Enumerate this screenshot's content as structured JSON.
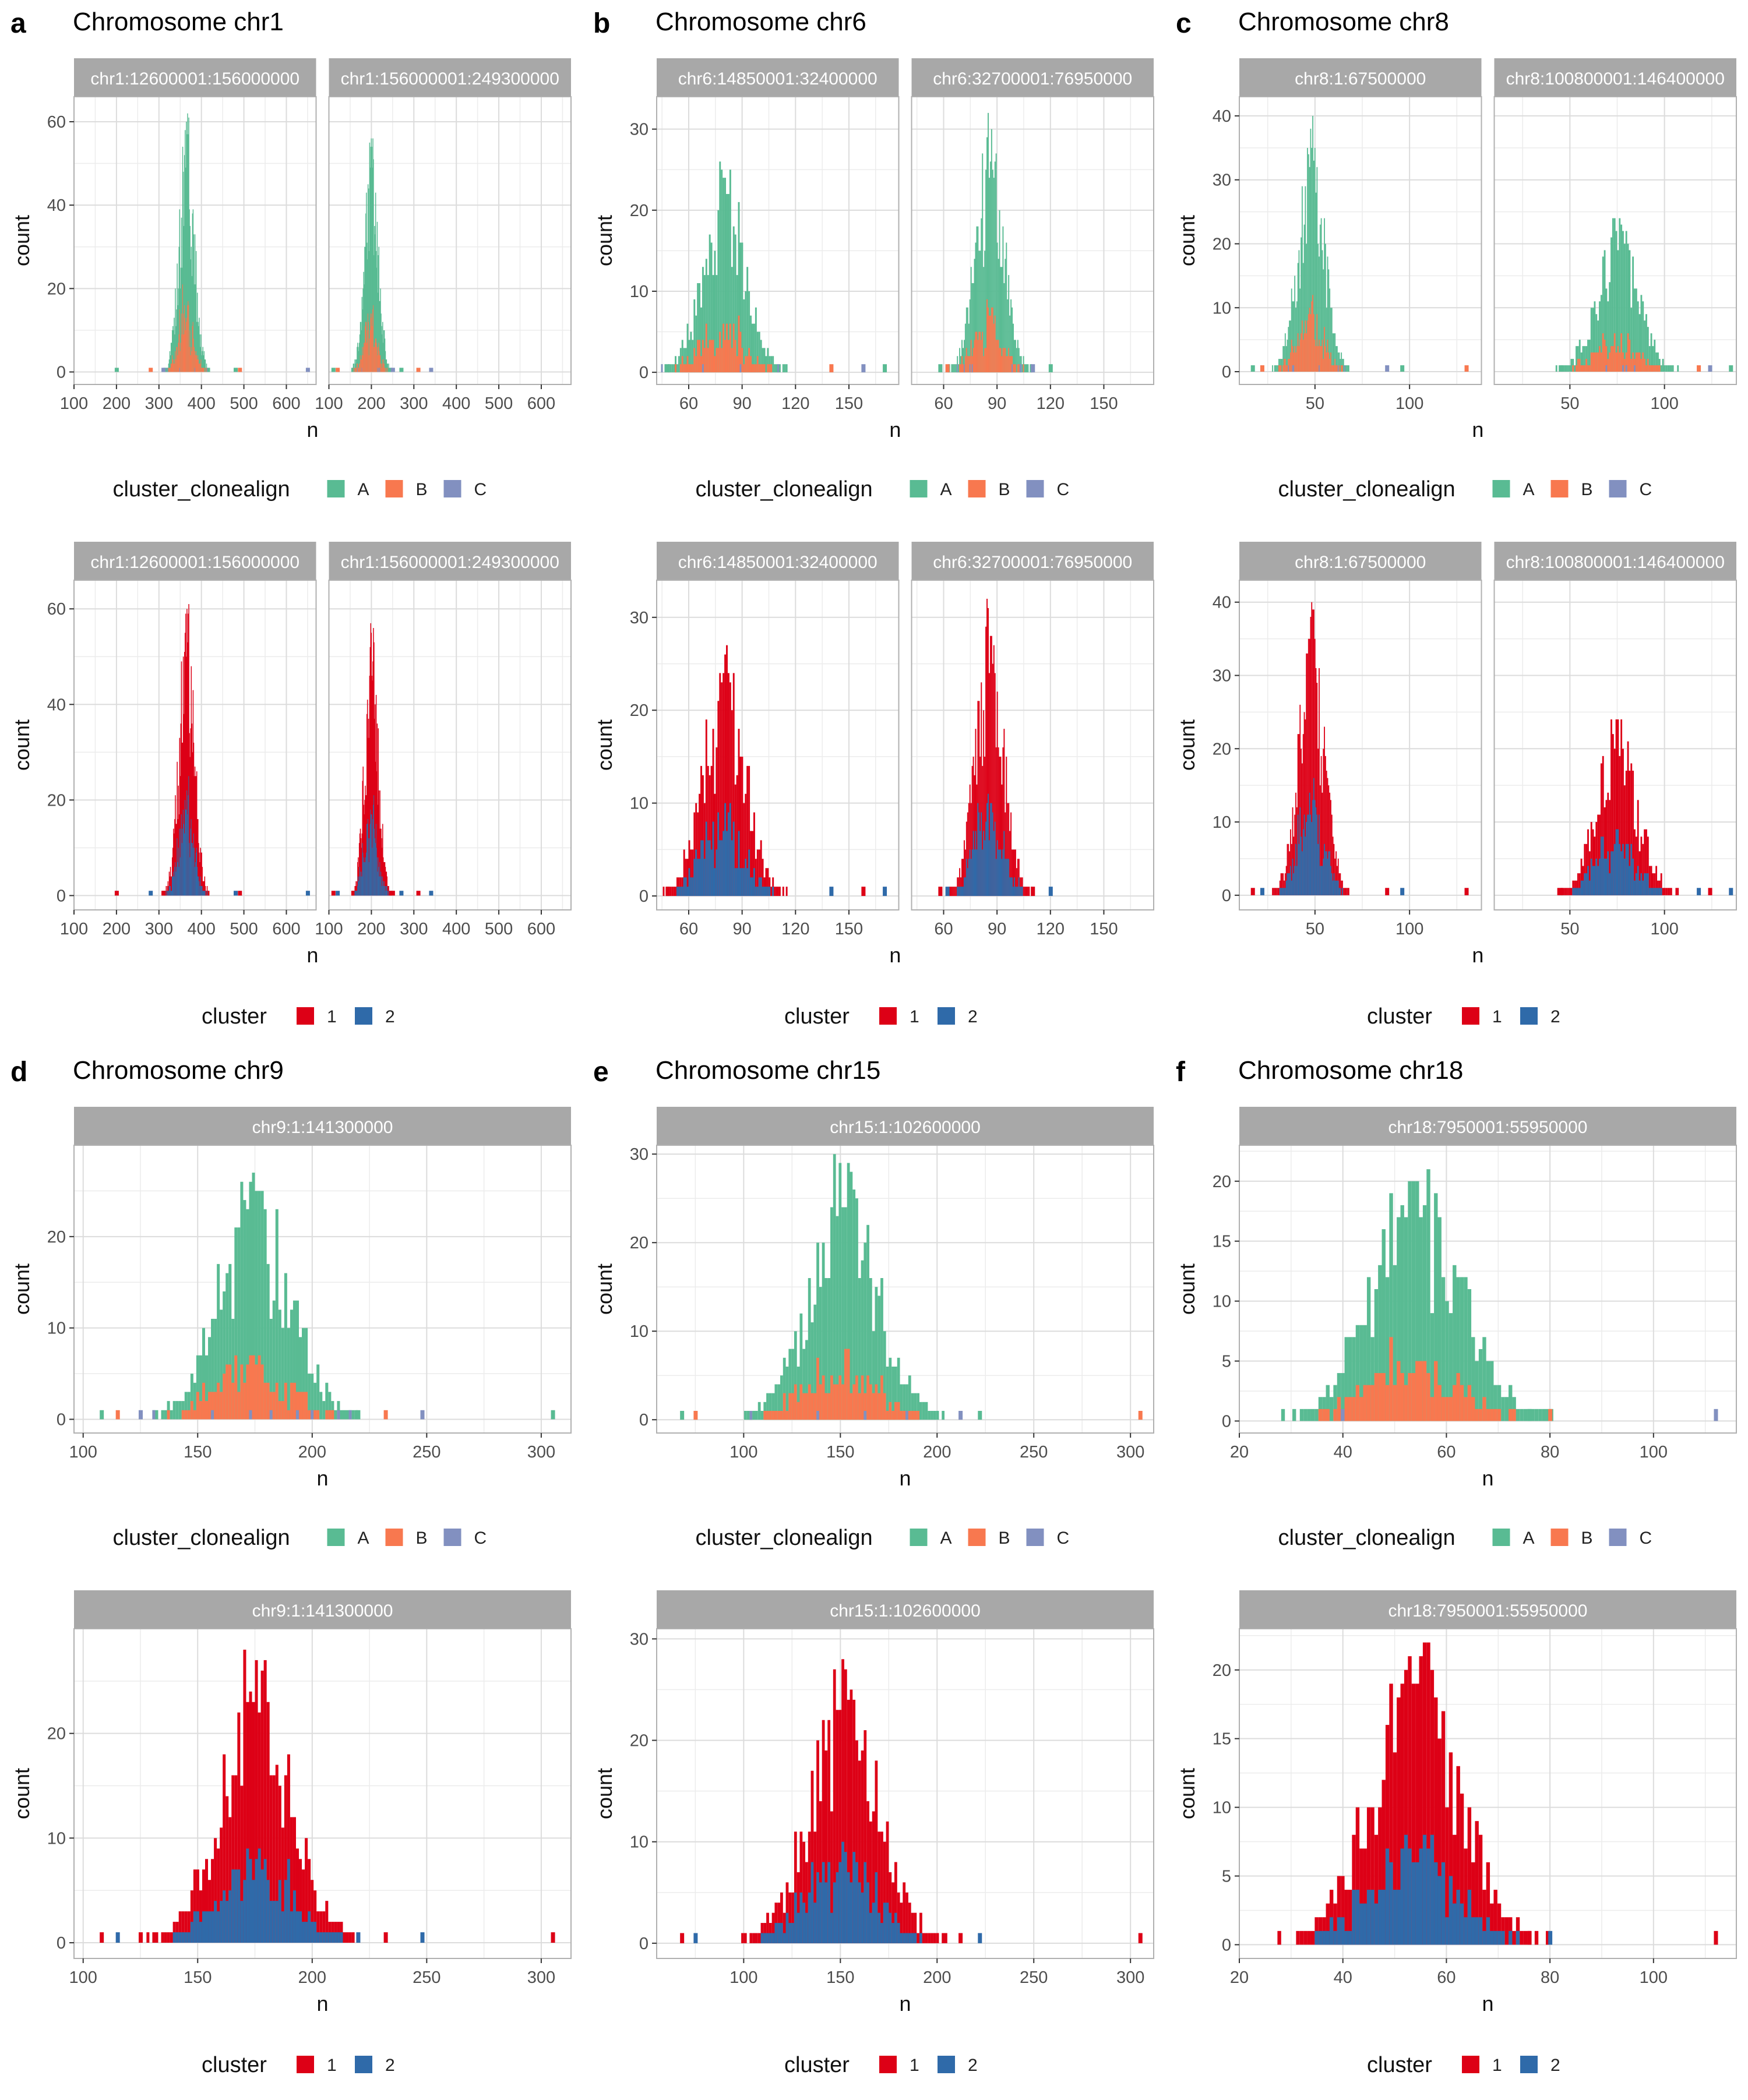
{
  "colors": {
    "A": "#59bb93",
    "B": "#f8784f",
    "C": "#8290c0",
    "c1": "#dd0016",
    "c2": "#2f6aa9",
    "strip_bg": "#a8a8a8",
    "strip_text": "#ffffff",
    "grid_major": "#dcdcdc",
    "grid_minor": "#ececec",
    "panel_border": "#b0b0b0"
  },
  "legends": {
    "clonealign": {
      "title": "cluster_clonealign",
      "keys": [
        "A",
        "B",
        "C"
      ],
      "labels": [
        "A",
        "B",
        "C"
      ]
    },
    "cluster": {
      "title": "cluster",
      "keys": [
        "c1",
        "c2"
      ],
      "labels": [
        "1",
        "2"
      ]
    }
  },
  "figures": [
    {
      "letter": "a",
      "title": "Chromosome chr1",
      "facets": [
        "chr1:12600001:156000000",
        "chr1:156000001:249300000"
      ]
    },
    {
      "letter": "b",
      "title": "Chromosome chr6",
      "facets": [
        "chr6:14850001:32400000",
        "chr6:32700001:76950000"
      ]
    },
    {
      "letter": "c",
      "title": "Chromosome chr8",
      "facets": [
        "chr8:1:67500000",
        "chr8:100800001:146400000"
      ]
    },
    {
      "letter": "d",
      "title": "Chromosome chr9",
      "facets": [
        "chr9:1:141300000"
      ]
    },
    {
      "letter": "e",
      "title": "Chromosome chr15",
      "facets": [
        "chr15:1:102600000"
      ]
    },
    {
      "letter": "f",
      "title": "Chromosome chr18",
      "facets": [
        "chr18:7950001:55950000"
      ]
    }
  ],
  "chart_data": [
    {
      "figure": "a",
      "type": "histogram",
      "xlabel": "n",
      "ylabel": "count",
      "fill": "cluster_clonealign",
      "facets": [
        "chr1:12600001:156000000",
        "chr1:156000001:249300000"
      ],
      "xlim": [
        100,
        670
      ],
      "ylim": [
        -3,
        66
      ],
      "xticks": [
        100,
        200,
        300,
        400,
        500,
        600
      ],
      "yticks": [
        0,
        20,
        40,
        60
      ],
      "distributions": [
        {
          "mean": 365,
          "sd": 18,
          "peak": 62,
          "rare": [
            200,
            280,
            310,
            480,
            490,
            650
          ]
        },
        {
          "mean": 200,
          "sd": 16,
          "peak": 59,
          "rare": [
            110,
            120,
            250,
            270,
            310,
            340
          ]
        }
      ]
    },
    {
      "figure": "a",
      "type": "histogram",
      "xlabel": "n",
      "ylabel": "count",
      "fill": "cluster",
      "facets": [
        "chr1:12600001:156000000",
        "chr1:156000001:249300000"
      ],
      "xlim": [
        100,
        670
      ],
      "ylim": [
        -3,
        66
      ],
      "xticks": [
        100,
        200,
        300,
        400,
        500,
        600
      ],
      "yticks": [
        0,
        20,
        40,
        60
      ],
      "distributions": [
        {
          "mean": 365,
          "sd": 18,
          "peak": 62,
          "rare": [
            200,
            280,
            310,
            480,
            490,
            650
          ]
        },
        {
          "mean": 200,
          "sd": 16,
          "peak": 59,
          "rare": [
            110,
            120,
            250,
            270,
            310,
            340
          ]
        }
      ]
    },
    {
      "figure": "b",
      "type": "histogram",
      "xlabel": "n",
      "ylabel": "count",
      "fill": "cluster_clonealign",
      "facets": [
        "chr6:14850001:32400000",
        "chr6:32700001:76950000"
      ],
      "xlim": [
        42,
        178
      ],
      "ylim": [
        -1.5,
        34
      ],
      "xticks": [
        60,
        90,
        120,
        150
      ],
      "yticks": [
        0,
        10,
        20,
        30
      ],
      "distributions": [
        {
          "mean": 80,
          "sd": 12,
          "peak": 27,
          "rare": [
            48,
            140,
            158,
            170
          ]
        },
        {
          "mean": 86,
          "sd": 8,
          "peak": 32,
          "rare": [
            58,
            62,
            110,
            120
          ]
        }
      ]
    },
    {
      "figure": "b",
      "type": "histogram",
      "xlabel": "n",
      "ylabel": "count",
      "fill": "cluster",
      "facets": [
        "chr6:14850001:32400000",
        "chr6:32700001:76950000"
      ],
      "xlim": [
        42,
        178
      ],
      "ylim": [
        -1.5,
        34
      ],
      "xticks": [
        60,
        90,
        120,
        150
      ],
      "yticks": [
        0,
        10,
        20,
        30
      ],
      "distributions": [
        {
          "mean": 80,
          "sd": 12,
          "peak": 27,
          "rare": [
            48,
            140,
            158,
            170
          ]
        },
        {
          "mean": 86,
          "sd": 8,
          "peak": 32,
          "rare": [
            58,
            62,
            110,
            120
          ]
        }
      ]
    },
    {
      "figure": "c",
      "type": "histogram",
      "xlabel": "n",
      "ylabel": "count",
      "fill": "cluster_clonealign",
      "facets": [
        "chr8:1:67500000",
        "chr8:100800001:146400000"
      ],
      "xlim": [
        10,
        138
      ],
      "ylim": [
        -2,
        43
      ],
      "xticks": [
        50,
        100
      ],
      "yticks": [
        0,
        10,
        20,
        30,
        40
      ],
      "distributions": [
        {
          "mean": 48,
          "sd": 7,
          "peak": 40,
          "rare": [
            17,
            22,
            88,
            96,
            130
          ]
        },
        {
          "mean": 75,
          "sd": 11,
          "peak": 25,
          "rare": [
            45,
            118,
            124,
            135
          ]
        }
      ]
    },
    {
      "figure": "c",
      "type": "histogram",
      "xlabel": "n",
      "ylabel": "count",
      "fill": "cluster",
      "facets": [
        "chr8:1:67500000",
        "chr8:100800001:146400000"
      ],
      "xlim": [
        10,
        138
      ],
      "ylim": [
        -2,
        43
      ],
      "xticks": [
        50,
        100
      ],
      "yticks": [
        0,
        10,
        20,
        30,
        40
      ],
      "distributions": [
        {
          "mean": 48,
          "sd": 7,
          "peak": 40,
          "rare": [
            17,
            22,
            88,
            96,
            130
          ]
        },
        {
          "mean": 75,
          "sd": 11,
          "peak": 25,
          "rare": [
            45,
            118,
            124,
            135
          ]
        }
      ]
    },
    {
      "figure": "d",
      "type": "histogram",
      "xlabel": "n",
      "ylabel": "count",
      "fill": "cluster_clonealign",
      "facets": [
        "chr9:1:141300000"
      ],
      "xlim": [
        96,
        313
      ],
      "ylim": [
        -1.5,
        30
      ],
      "xticks": [
        100,
        150,
        200,
        250,
        300
      ],
      "yticks": [
        0,
        10,
        20
      ],
      "distributions": [
        {
          "mean": 175,
          "sd": 16,
          "peak": 28,
          "rare": [
            108,
            115,
            125,
            220,
            232,
            248,
            305
          ]
        }
      ]
    },
    {
      "figure": "d",
      "type": "histogram",
      "xlabel": "n",
      "ylabel": "count",
      "fill": "cluster",
      "facets": [
        "chr9:1:141300000"
      ],
      "xlim": [
        96,
        313
      ],
      "ylim": [
        -1.5,
        30
      ],
      "xticks": [
        100,
        150,
        200,
        250,
        300
      ],
      "yticks": [
        0,
        10,
        20
      ],
      "distributions": [
        {
          "mean": 175,
          "sd": 16,
          "peak": 28,
          "rare": [
            108,
            115,
            125,
            220,
            232,
            248,
            305
          ]
        }
      ]
    },
    {
      "figure": "e",
      "type": "histogram",
      "xlabel": "n",
      "ylabel": "count",
      "fill": "cluster_clonealign",
      "facets": [
        "chr15:1:102600000"
      ],
      "xlim": [
        55,
        312
      ],
      "ylim": [
        -1.5,
        31
      ],
      "xticks": [
        100,
        150,
        200,
        250,
        300
      ],
      "yticks": [
        0,
        10,
        20,
        30
      ],
      "distributions": [
        {
          "mean": 152,
          "sd": 18,
          "peak": 30,
          "rare": [
            68,
            75,
            212,
            222,
            305
          ]
        }
      ]
    },
    {
      "figure": "e",
      "type": "histogram",
      "xlabel": "n",
      "ylabel": "count",
      "fill": "cluster",
      "facets": [
        "chr15:1:102600000"
      ],
      "xlim": [
        55,
        312
      ],
      "ylim": [
        -1.5,
        31
      ],
      "xticks": [
        100,
        150,
        200,
        250,
        300
      ],
      "yticks": [
        0,
        10,
        20,
        30
      ],
      "distributions": [
        {
          "mean": 152,
          "sd": 18,
          "peak": 30,
          "rare": [
            68,
            75,
            212,
            222,
            305
          ]
        }
      ]
    },
    {
      "figure": "f",
      "type": "histogram",
      "xlabel": "n",
      "ylabel": "count",
      "fill": "cluster_clonealign",
      "facets": [
        "chr18:7950001:55950000"
      ],
      "xlim": [
        20,
        116
      ],
      "ylim": [
        -1,
        23
      ],
      "xticks": [
        20,
        40,
        60,
        80,
        100
      ],
      "yticks": [
        0,
        5,
        10,
        15,
        20
      ],
      "distributions": [
        {
          "mean": 54,
          "sd": 9,
          "peak": 22,
          "rare": [
            76,
            80,
            112
          ]
        }
      ]
    },
    {
      "figure": "f",
      "type": "histogram",
      "xlabel": "n",
      "ylabel": "count",
      "fill": "cluster",
      "facets": [
        "chr18:7950001:55950000"
      ],
      "xlim": [
        20,
        116
      ],
      "ylim": [
        -1,
        23
      ],
      "xticks": [
        20,
        40,
        60,
        80,
        100
      ],
      "yticks": [
        0,
        5,
        10,
        15,
        20
      ],
      "distributions": [
        {
          "mean": 54,
          "sd": 9,
          "peak": 22,
          "rare": [
            76,
            80,
            112
          ]
        }
      ]
    }
  ]
}
